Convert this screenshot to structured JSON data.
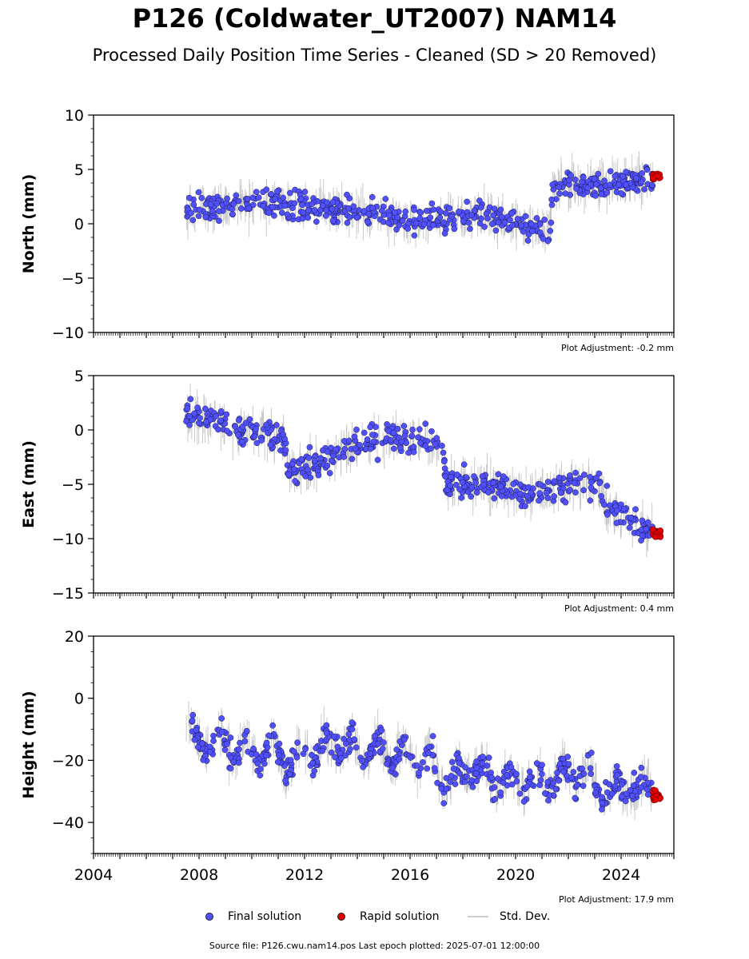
{
  "header": {
    "title": "P126 (Coldwater_UT2007) NAM14",
    "subtitle": "Processed Daily Position Time Series - Cleaned (SD > 20 Removed)"
  },
  "chart_data": [
    {
      "type": "scatter",
      "ylabel": "North (mm)",
      "adjustment": "Plot Adjustment: -0.2 mm",
      "xlim": [
        2004,
        2026
      ],
      "ylim": [
        -10,
        10
      ],
      "yticks": [
        -10,
        -5,
        0,
        5,
        10
      ],
      "ytick_labels": [
        "−10",
        "−5",
        "0",
        "5",
        "10"
      ],
      "x": [
        2007.5,
        2008.5,
        2009.5,
        2010.5,
        2011.5,
        2012.5,
        2013.5,
        2014.5,
        2015.5,
        2016.5,
        2017.5,
        2018.5,
        2019.5,
        2020.5,
        2021.3,
        2021.4,
        2022.5,
        2023.5,
        2024.5,
        2025.2
      ],
      "y": [
        1.2,
        1.5,
        1.8,
        1.9,
        1.6,
        1.5,
        1.3,
        0.9,
        0.6,
        0.3,
        0.4,
        0.9,
        0.5,
        -0.1,
        -0.9,
        3.5,
        3.7,
        3.6,
        3.9,
        4.1
      ],
      "rapid": {
        "x": [
          2025.2,
          2025.5
        ],
        "y": [
          4.0,
          4.6
        ]
      }
    },
    {
      "type": "scatter",
      "ylabel": "East (mm)",
      "adjustment": "Plot Adjustment: 0.4 mm",
      "xlim": [
        2004,
        2026
      ],
      "ylim": [
        -15,
        5
      ],
      "yticks": [
        -15,
        -10,
        -5,
        0,
        5
      ],
      "ytick_labels": [
        "−15",
        "−10",
        "−5",
        "0",
        "5"
      ],
      "x": [
        2007.5,
        2008.5,
        2009.5,
        2010.5,
        2011.2,
        2011.4,
        2012.5,
        2013.5,
        2014.5,
        2015.5,
        2016.5,
        2017.2,
        2017.4,
        2018.5,
        2019.5,
        2020.5,
        2021.5,
        2022.5,
        2023.2,
        2023.5,
        2024.2,
        2024.6,
        2025.2
      ],
      "y": [
        1.5,
        0.8,
        0.1,
        -0.4,
        -0.8,
        -3.8,
        -3.2,
        -2.0,
        -0.8,
        -0.7,
        -1.0,
        -1.6,
        -5.0,
        -4.8,
        -5.3,
        -5.8,
        -5.3,
        -4.8,
        -4.9,
        -7.3,
        -7.8,
        -8.8,
        -9.2
      ],
      "rapid": {
        "x": [
          2025.2,
          2025.5
        ],
        "y": [
          -9.1,
          -9.9
        ]
      }
    },
    {
      "type": "scatter",
      "ylabel": "Height (mm)",
      "adjustment": "Plot Adjustment: 17.9 mm",
      "xlim": [
        2004,
        2026
      ],
      "ylim": [
        -50,
        20
      ],
      "yticks": [
        -40,
        -20,
        0,
        20
      ],
      "ytick_labels": [
        "−40",
        "−20",
        "0",
        "20"
      ],
      "x": [
        2007.5,
        2008.3,
        2008.8,
        2009.3,
        2009.8,
        2010.3,
        2010.8,
        2011.3,
        2011.8,
        2012.3,
        2012.8,
        2013.3,
        2013.8,
        2014.3,
        2014.8,
        2015.3,
        2015.8,
        2016.3,
        2016.8,
        2017.3,
        2017.8,
        2018.3,
        2018.8,
        2019.3,
        2019.8,
        2020.3,
        2020.8,
        2021.3,
        2021.8,
        2022.3,
        2022.8,
        2023.3,
        2023.8,
        2024.3,
        2024.8,
        2025.2
      ],
      "y": [
        -6,
        -18,
        -10,
        -21,
        -12,
        -22,
        -12,
        -26,
        -14,
        -21,
        -11,
        -19,
        -11,
        -21,
        -12,
        -22,
        -14,
        -25,
        -16,
        -32,
        -21,
        -26,
        -19,
        -30,
        -23,
        -30,
        -22,
        -30,
        -21,
        -28,
        -20,
        -35,
        -25,
        -33,
        -26,
        -30
      ],
      "rapid": {
        "x": [
          2025.2,
          2025.5
        ],
        "y": [
          -29,
          -33
        ]
      },
      "xticks": [
        2004,
        2008,
        2012,
        2016,
        2020,
        2024
      ],
      "xtick_labels": [
        "2004",
        "2008",
        "2012",
        "2016",
        "2020",
        "2024"
      ]
    }
  ],
  "legend": {
    "final": "Final solution",
    "rapid": "Rapid solution",
    "std": "Std. Dev."
  },
  "colors": {
    "final": "#5050ff",
    "rapid": "#e00000",
    "std": "#bdbdbd"
  },
  "footer": "Source file: P126.cwu.nam14.pos  Last epoch plotted: 2025-07-01 12:00:00"
}
